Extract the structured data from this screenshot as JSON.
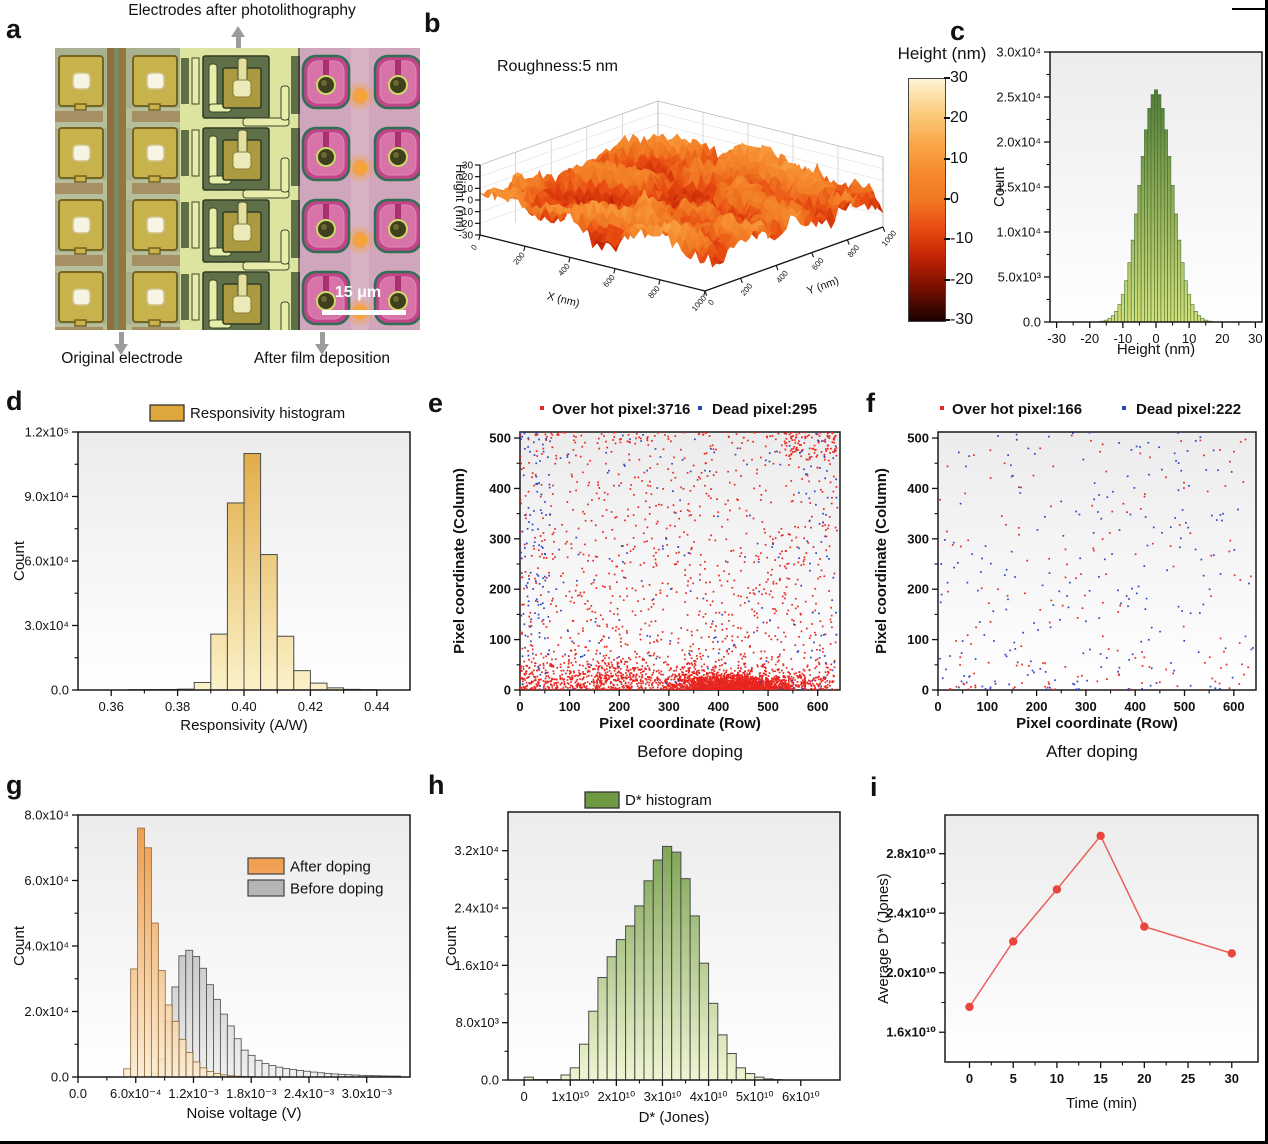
{
  "figure": {
    "panels": {
      "a": {
        "label": "a",
        "top_caption": "Electrodes after photolithography",
        "bottom_left_caption": "Original electrode",
        "bottom_right_caption": "After film deposition",
        "scale_bar": "15 μm"
      },
      "b": {
        "label": "b",
        "title": "Roughness:5 nm"
      },
      "c": {
        "label": "c"
      },
      "d": {
        "label": "d"
      },
      "e": {
        "label": "e",
        "caption": "Before doping"
      },
      "f": {
        "label": "f",
        "caption": "After doping"
      },
      "g": {
        "label": "g"
      },
      "h": {
        "label": "h"
      },
      "i": {
        "label": "i"
      }
    }
  },
  "chart_data": [
    {
      "id": "b",
      "type": "surface",
      "title": "Roughness:5 nm",
      "xlabel": "X (nm)",
      "ylabel": "Y (nm)",
      "zlabel": "Height (nm)",
      "xlim": [
        0,
        1000
      ],
      "ylim": [
        0,
        1000
      ],
      "zlim": [
        -30,
        30
      ],
      "roughness_nm": 5,
      "xticks": [
        {
          "v": 0,
          "l": "0"
        },
        {
          "v": 200,
          "l": "200"
        },
        {
          "v": 400,
          "l": "400"
        },
        {
          "v": 600,
          "l": "600"
        },
        {
          "v": 800,
          "l": "800"
        },
        {
          "v": 1000,
          "l": "1000"
        }
      ],
      "yticks": [
        {
          "v": 0,
          "l": "0"
        },
        {
          "v": 200,
          "l": "200"
        },
        {
          "v": 400,
          "l": "400"
        },
        {
          "v": 600,
          "l": "600"
        },
        {
          "v": 800,
          "l": "800"
        },
        {
          "v": 1000,
          "l": "1000"
        }
      ],
      "zticks": [
        {
          "v": 30,
          "l": "30"
        },
        {
          "v": 20,
          "l": "20"
        },
        {
          "v": 10,
          "l": "10"
        },
        {
          "v": 0,
          "l": "0"
        },
        {
          "v": -10,
          "l": "-10"
        },
        {
          "v": -20,
          "l": "-20"
        },
        {
          "v": -30,
          "l": "-30"
        }
      ],
      "colormap": [
        "#1a0200",
        "#7a0f00",
        "#c42504",
        "#e84a10",
        "#f07822",
        "#f68a2e",
        "#f9a94a",
        "#fbcf82",
        "#fdf3d4"
      ],
      "colorbar": {
        "title": "Height (nm)",
        "ticks": [
          "30",
          "20",
          "10",
          "0",
          "-10",
          "-20",
          "-30"
        ]
      }
    },
    {
      "id": "c",
      "type": "bar",
      "xlabel": "Height (nm)",
      "ylabel": "Count",
      "xlim": [
        -32,
        32
      ],
      "ylim": [
        0,
        30000
      ],
      "xticks": [
        {
          "v": -30,
          "l": "-30"
        },
        {
          "v": -20,
          "l": "-20"
        },
        {
          "v": -10,
          "l": "-10"
        },
        {
          "v": 0,
          "l": "0"
        },
        {
          "v": 10,
          "l": "10"
        },
        {
          "v": 20,
          "l": "20"
        },
        {
          "v": 30,
          "l": "30"
        }
      ],
      "yticks": [
        {
          "v": 0,
          "l": "0.0"
        },
        {
          "v": 5000,
          "l": "5.0x10³"
        },
        {
          "v": 10000,
          "l": "1.0x10⁴"
        },
        {
          "v": 15000,
          "l": "1.5x10⁴"
        },
        {
          "v": 20000,
          "l": "2.0x10⁴"
        },
        {
          "v": 25000,
          "l": "2.5x10⁴"
        },
        {
          "v": 30000,
          "l": "3.0x10⁴"
        }
      ],
      "bin_start": -17.5,
      "bin_width": 1,
      "values": [
        53,
        108,
        210,
        390,
        700,
        1190,
        1950,
        3060,
        4590,
        6600,
        9100,
        12010,
        15190,
        18400,
        21360,
        23740,
        25270,
        25800,
        25270,
        23740,
        21360,
        18400,
        15190,
        12010,
        9100,
        6600,
        4590,
        3060,
        1950,
        1190,
        700,
        390,
        210,
        108,
        53
      ],
      "bar_top": "#3E6B2F",
      "bar_bottom": "#D6E07A",
      "bar_stroke": "#3F7032",
      "stroke_w": 0.6
    },
    {
      "id": "d",
      "type": "bar",
      "legend": "Responsivity histogram",
      "xlabel": "Responsivity (A/W)",
      "ylabel": "Count",
      "xlim": [
        0.35,
        0.45
      ],
      "ylim": [
        0,
        120000
      ],
      "xticks": [
        {
          "v": 0.36,
          "l": "0.36"
        },
        {
          "v": 0.38,
          "l": "0.38"
        },
        {
          "v": 0.4,
          "l": "0.40"
        },
        {
          "v": 0.42,
          "l": "0.42"
        },
        {
          "v": 0.44,
          "l": "0.44"
        }
      ],
      "yticks": [
        {
          "v": 0,
          "l": "0.0"
        },
        {
          "v": 30000,
          "l": "3.0x10⁴"
        },
        {
          "v": 60000,
          "l": "6.0x10⁴"
        },
        {
          "v": 90000,
          "l": "9.0x10⁴"
        },
        {
          "v": 120000,
          "l": "1.2x10⁵"
        }
      ],
      "bin_start": 0.365,
      "bin_width": 0.005,
      "values": [
        150,
        200,
        250,
        400,
        3500,
        26000,
        87000,
        110000,
        63000,
        25000,
        9000,
        3200,
        1000,
        300,
        150
      ],
      "bar_top": "#DFA63E",
      "bar_bottom": "#FBF2C8",
      "bar_stroke": "#4a4a4a",
      "stroke_w": 1
    },
    {
      "id": "e",
      "type": "scatter",
      "caption": "Before doping",
      "xlabel": "Pixel coordinate (Row)",
      "ylabel": "Pixel coordinate (Column)",
      "xlim": [
        0,
        645
      ],
      "ylim": [
        0,
        512
      ],
      "xticks": [
        {
          "v": 0,
          "l": "0"
        },
        {
          "v": 100,
          "l": "100"
        },
        {
          "v": 200,
          "l": "200"
        },
        {
          "v": 300,
          "l": "300"
        },
        {
          "v": 400,
          "l": "400"
        },
        {
          "v": 500,
          "l": "500"
        },
        {
          "v": 600,
          "l": "600"
        }
      ],
      "yticks": [
        {
          "v": 0,
          "l": "0"
        },
        {
          "v": 100,
          "l": "100"
        },
        {
          "v": 200,
          "l": "200"
        },
        {
          "v": 300,
          "l": "300"
        },
        {
          "v": 400,
          "l": "400"
        },
        {
          "v": 500,
          "l": "500"
        }
      ],
      "series": [
        {
          "name": "Over hot pixel:3716",
          "count": 3716,
          "color": "#E8251F",
          "pattern": "e-hot"
        },
        {
          "name": "Dead pixel:295",
          "count": 295,
          "color": "#2F45C0",
          "pattern": "e-dead"
        }
      ]
    },
    {
      "id": "f",
      "type": "scatter",
      "caption": "After doping",
      "xlabel": "Pixel coordinate (Row)",
      "ylabel": "Pixel coordinate (Column)",
      "xlim": [
        0,
        645
      ],
      "ylim": [
        0,
        512
      ],
      "xticks": [
        {
          "v": 0,
          "l": "0"
        },
        {
          "v": 100,
          "l": "100"
        },
        {
          "v": 200,
          "l": "200"
        },
        {
          "v": 300,
          "l": "300"
        },
        {
          "v": 400,
          "l": "400"
        },
        {
          "v": 500,
          "l": "500"
        },
        {
          "v": 600,
          "l": "600"
        }
      ],
      "yticks": [
        {
          "v": 0,
          "l": "0"
        },
        {
          "v": 100,
          "l": "100"
        },
        {
          "v": 200,
          "l": "200"
        },
        {
          "v": 300,
          "l": "300"
        },
        {
          "v": 400,
          "l": "400"
        },
        {
          "v": 500,
          "l": "500"
        }
      ],
      "series": [
        {
          "name": "Over hot pixel:166",
          "count": 166,
          "color": "#E8251F",
          "pattern": "f-hot"
        },
        {
          "name": "Dead pixel:222",
          "count": 222,
          "color": "#2F45C0",
          "pattern": "f-dead"
        }
      ]
    },
    {
      "id": "g",
      "type": "bar-multi",
      "xlabel": "Noise voltage (V)",
      "ylabel": "Count",
      "xlim": [
        0,
        0.00345
      ],
      "ylim": [
        0,
        80000
      ],
      "xticks": [
        {
          "v": 0,
          "l": "0.0"
        },
        {
          "v": 0.0006,
          "l": "6.0x10⁻⁴"
        },
        {
          "v": 0.0012,
          "l": "1.2x10⁻³"
        },
        {
          "v": 0.0018,
          "l": "1.8x10⁻³"
        },
        {
          "v": 0.0024,
          "l": "2.4x10⁻³"
        },
        {
          "v": 0.003,
          "l": "3.0x10⁻³"
        }
      ],
      "yticks": [
        {
          "v": 0,
          "l": "0.0"
        },
        {
          "v": 20000,
          "l": "2.0x10⁴"
        },
        {
          "v": 40000,
          "l": "4.0x10⁴"
        },
        {
          "v": 60000,
          "l": "6.0x10⁴"
        },
        {
          "v": 80000,
          "l": "8.0x10⁴"
        }
      ],
      "series": [
        {
          "name": "Before doping",
          "bin_start": 0.00076,
          "bin_width": 7.2e-05,
          "values": [
            1200,
            5500,
            17000,
            27500,
            37000,
            38700,
            36800,
            33200,
            28200,
            23700,
            19200,
            15600,
            11700,
            8200,
            6600,
            5100,
            4100,
            3500,
            3000,
            2600,
            2300,
            2000,
            1750,
            1500,
            1300,
            1100,
            950,
            800,
            700,
            600,
            500,
            450,
            400,
            350,
            300,
            280
          ],
          "top": "#9E9E9E",
          "bottom": "#F0F0F0",
          "stroke": "#5a5a5a",
          "opacity": 1
        },
        {
          "name": "After doping",
          "bin_start": 0.000475,
          "bin_width": 7.2e-05,
          "values": [
            2500,
            33000,
            76000,
            70000,
            47000,
            32500,
            22000,
            17000,
            11500,
            7500,
            4600,
            2800,
            1700,
            1050,
            650,
            400,
            250,
            150,
            90
          ],
          "top": "#EE8F35",
          "bottom": "#FBEBD0",
          "stroke": "#8a6430",
          "opacity": 0.88
        }
      ],
      "legend_order": [
        "After doping",
        "Before doping"
      ]
    },
    {
      "id": "h",
      "type": "bar",
      "legend": "D* histogram",
      "xlabel": "D* (Jones)",
      "ylabel": "Count",
      "xlim": [
        -3500000000,
        68500000000
      ],
      "ylim": [
        0,
        37400
      ],
      "xticks": [
        {
          "v": 0,
          "l": "0"
        },
        {
          "v": 10000000000,
          "l": "1x10¹⁰"
        },
        {
          "v": 20000000000,
          "l": "2x10¹⁰"
        },
        {
          "v": 30000000000,
          "l": "3x10¹⁰"
        },
        {
          "v": 40000000000,
          "l": "4x10¹⁰"
        },
        {
          "v": 50000000000,
          "l": "5x10¹⁰"
        },
        {
          "v": 60000000000,
          "l": "6x10¹⁰"
        }
      ],
      "yticks": [
        {
          "v": 0,
          "l": "0.0"
        },
        {
          "v": 8000,
          "l": "8.0x10³"
        },
        {
          "v": 16000,
          "l": "1.6x10⁴"
        },
        {
          "v": 24000,
          "l": "2.4x10⁴"
        },
        {
          "v": 32000,
          "l": "3.2x10⁴"
        }
      ],
      "bin_start": 0,
      "bin_width": 2000000000,
      "values": [
        400,
        60,
        60,
        60,
        700,
        1700,
        5000,
        9600,
        14300,
        17200,
        19600,
        21500,
        24300,
        27800,
        30700,
        32600,
        31800,
        28100,
        22900,
        16300,
        10700,
        6300,
        3700,
        1700,
        900,
        400,
        150,
        60
      ],
      "bar_top": "#6F9A44",
      "bar_bottom": "#EFF5D2",
      "bar_stroke": "#4a4a4a",
      "stroke_w": 1
    },
    {
      "id": "i",
      "type": "line",
      "xlabel": "Time (min)",
      "ylabel": "Average D* (Jones)",
      "xlim": [
        -2.8,
        33
      ],
      "ylim": [
        14000000000,
        30600000000
      ],
      "xticks": [
        {
          "v": 0,
          "l": "0"
        },
        {
          "v": 5,
          "l": "5"
        },
        {
          "v": 10,
          "l": "10"
        },
        {
          "v": 15,
          "l": "15"
        },
        {
          "v": 20,
          "l": "20"
        },
        {
          "v": 25,
          "l": "25"
        },
        {
          "v": 30,
          "l": "30"
        }
      ],
      "yticks": [
        {
          "v": 16000000000,
          "l": "1.6x10¹⁰"
        },
        {
          "v": 20000000000,
          "l": "2.0x10¹⁰"
        },
        {
          "v": 24000000000,
          "l": "2.4x10¹⁰"
        },
        {
          "v": 28000000000,
          "l": "2.8x10¹⁰"
        }
      ],
      "x": [
        0,
        5,
        10,
        15,
        20,
        30
      ],
      "y": [
        17700000000,
        22100000000,
        25600000000,
        29200000000,
        23100000000,
        21300000000
      ],
      "color": "#E8453C"
    }
  ]
}
